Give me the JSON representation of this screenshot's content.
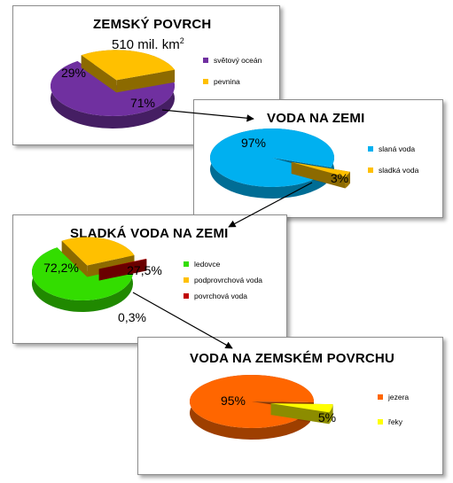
{
  "chart_data": [
    {
      "type": "pie",
      "title": "ZEMSKÝ POVRCH",
      "subtitle": "510 mil. km",
      "subtitle_sup": "2",
      "categories": [
        "světový oceán",
        "pevnina"
      ],
      "values": [
        71,
        29
      ],
      "data_labels": [
        "71%",
        "29%"
      ],
      "colors": [
        "#7030a0",
        "#ffc000"
      ],
      "legend": "right"
    },
    {
      "type": "pie",
      "title": "VODA NA ZEMI",
      "categories": [
        "slaná voda",
        "sladká voda"
      ],
      "values": [
        97,
        3
      ],
      "data_labels": [
        "97%",
        "3%"
      ],
      "colors": [
        "#00b0f0",
        "#ffc000"
      ],
      "legend": "right"
    },
    {
      "type": "pie",
      "title": "SLADKÁ VODA NA ZEMI",
      "categories": [
        "ledovce",
        "podprovrchová voda",
        "povrchová voda"
      ],
      "values": [
        72.2,
        27.5,
        0.3
      ],
      "data_labels": [
        "72,2%",
        "27,5%",
        "0,3%"
      ],
      "colors": [
        "#33dd00",
        "#ffc000",
        "#c00000"
      ],
      "legend": "right"
    },
    {
      "type": "pie",
      "title": "VODA NA ZEMSKÉM POVRCHU",
      "categories": [
        "jezera",
        "řeky"
      ],
      "values": [
        95,
        5
      ],
      "data_labels": [
        "95%",
        "5%"
      ],
      "colors": [
        "#ff6600",
        "#ffff00"
      ],
      "legend": "right"
    }
  ]
}
